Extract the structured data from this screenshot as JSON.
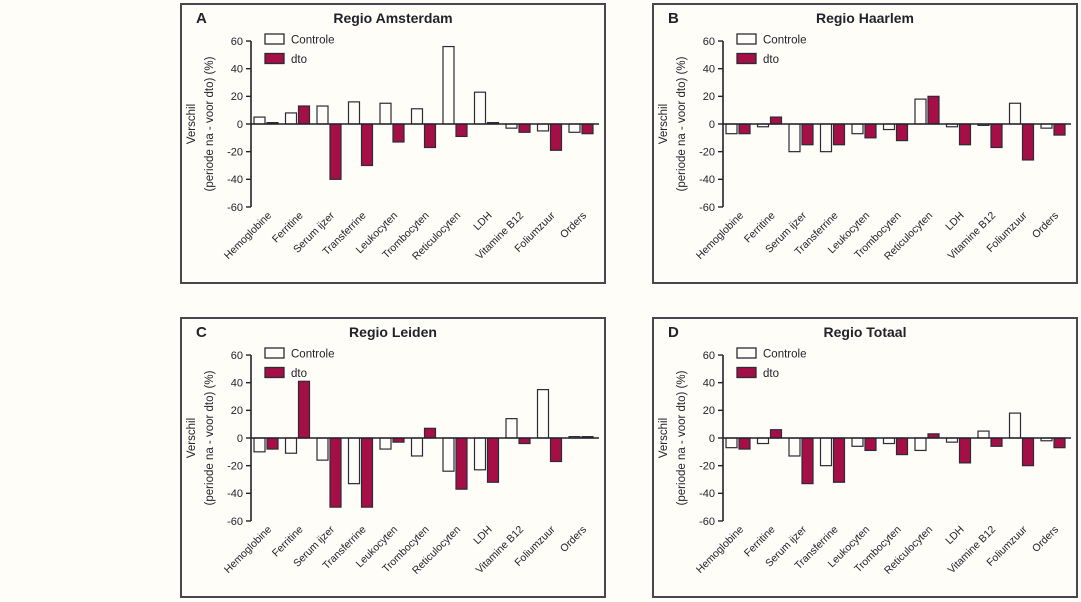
{
  "figure": {
    "legend": {
      "controle_label": "Controle",
      "dto_label": "dto"
    },
    "ylabel_line1": "Verschil",
    "ylabel_line2": "(periode na - voor dto) (%)",
    "colors": {
      "background": "#fffdf8",
      "controle_fill": "#fffdf8",
      "dto_fill": "#a60f46",
      "bar_outline": "#2b2b38",
      "axis": "#22222a",
      "text": "#22222a",
      "panel_border": "#47474f"
    }
  },
  "chart_data": [
    {
      "type": "bar",
      "panel": "A",
      "title": "Regio Amsterdam",
      "ylabel": "Verschil (periode na - voor dto) (%)",
      "ylim": [
        -60,
        60
      ],
      "yticks": [
        60,
        40,
        20,
        0,
        -20,
        -40,
        -60
      ],
      "grid": false,
      "legend_position": "top-left",
      "categories": [
        "Hemoglobine",
        "Ferritine",
        "Serum ijzer",
        "Transferrine",
        "Leukocyten",
        "Trombocyten",
        "Reticulocyten",
        "LDH",
        "Vitamine B12",
        "Foliumzuur",
        "Orders"
      ],
      "series": [
        {
          "name": "Controle",
          "values": [
            5,
            8,
            13,
            16,
            15,
            11,
            56,
            23,
            -3,
            -5,
            -6
          ]
        },
        {
          "name": "dto",
          "values": [
            1,
            13,
            -40,
            -30,
            -13,
            -17,
            -9,
            1,
            -6,
            -19,
            -7
          ]
        }
      ]
    },
    {
      "type": "bar",
      "panel": "B",
      "title": "Regio Haarlem",
      "ylabel": "Verschil (periode na - voor dto) (%)",
      "ylim": [
        -60,
        60
      ],
      "yticks": [
        60,
        40,
        20,
        0,
        -20,
        -40,
        -60
      ],
      "grid": false,
      "legend_position": "top-left",
      "categories": [
        "Hemoglobine",
        "Ferritine",
        "Serum ijzer",
        "Transferrine",
        "Leukocyten",
        "Trombocyten",
        "Reticulocyten",
        "LDH",
        "Vitamine B12",
        "Foliumzuur",
        "Orders"
      ],
      "series": [
        {
          "name": "Controle",
          "values": [
            -7,
            -2,
            -20,
            -20,
            -7,
            -4,
            18,
            -2,
            -1,
            15,
            -3
          ]
        },
        {
          "name": "dto",
          "values": [
            -7,
            5,
            -15,
            -15,
            -10,
            -12,
            20,
            -15,
            -17,
            -26,
            -8
          ]
        }
      ]
    },
    {
      "type": "bar",
      "panel": "C",
      "title": "Regio Leiden",
      "ylabel": "Verschil (periode na - voor dto) (%)",
      "ylim": [
        -60,
        60
      ],
      "yticks": [
        60,
        40,
        20,
        0,
        -20,
        -40,
        -60
      ],
      "grid": false,
      "legend_position": "top-left",
      "categories": [
        "Hemoglobine",
        "Ferritine",
        "Serum ijzer",
        "Transferrine",
        "Leukocyten",
        "Trombocyten",
        "Reticulocyten",
        "LDH",
        "Vitamine B12",
        "Foliumzuur",
        "Orders"
      ],
      "series": [
        {
          "name": "Controle",
          "values": [
            -10,
            -11,
            -16,
            -33,
            -8,
            -13,
            -24,
            -23,
            14,
            35,
            1
          ]
        },
        {
          "name": "dto",
          "values": [
            -8,
            41,
            -50,
            -50,
            -3,
            7,
            -37,
            -32,
            -4,
            -17,
            1
          ]
        }
      ]
    },
    {
      "type": "bar",
      "panel": "D",
      "title": "Regio Totaal",
      "ylabel": "Verschil (periode na - voor dto) (%)",
      "ylim": [
        -60,
        60
      ],
      "yticks": [
        60,
        40,
        20,
        0,
        -20,
        -40,
        -60
      ],
      "grid": false,
      "legend_position": "top-left",
      "categories": [
        "Hemoglobine",
        "Ferritine",
        "Serum ijzer",
        "Transferrine",
        "Leukocyten",
        "Trombocyten",
        "Reticulocyten",
        "LDH",
        "Vitamine B12",
        "Foliumzuur",
        "Orders"
      ],
      "series": [
        {
          "name": "Controle",
          "values": [
            -7,
            -4,
            -13,
            -20,
            -6,
            -4,
            -9,
            -3,
            5,
            18,
            -2
          ]
        },
        {
          "name": "dto",
          "values": [
            -8,
            6,
            -33,
            -32,
            -9,
            -12,
            3,
            -18,
            -6,
            -20,
            -7
          ]
        }
      ]
    }
  ]
}
